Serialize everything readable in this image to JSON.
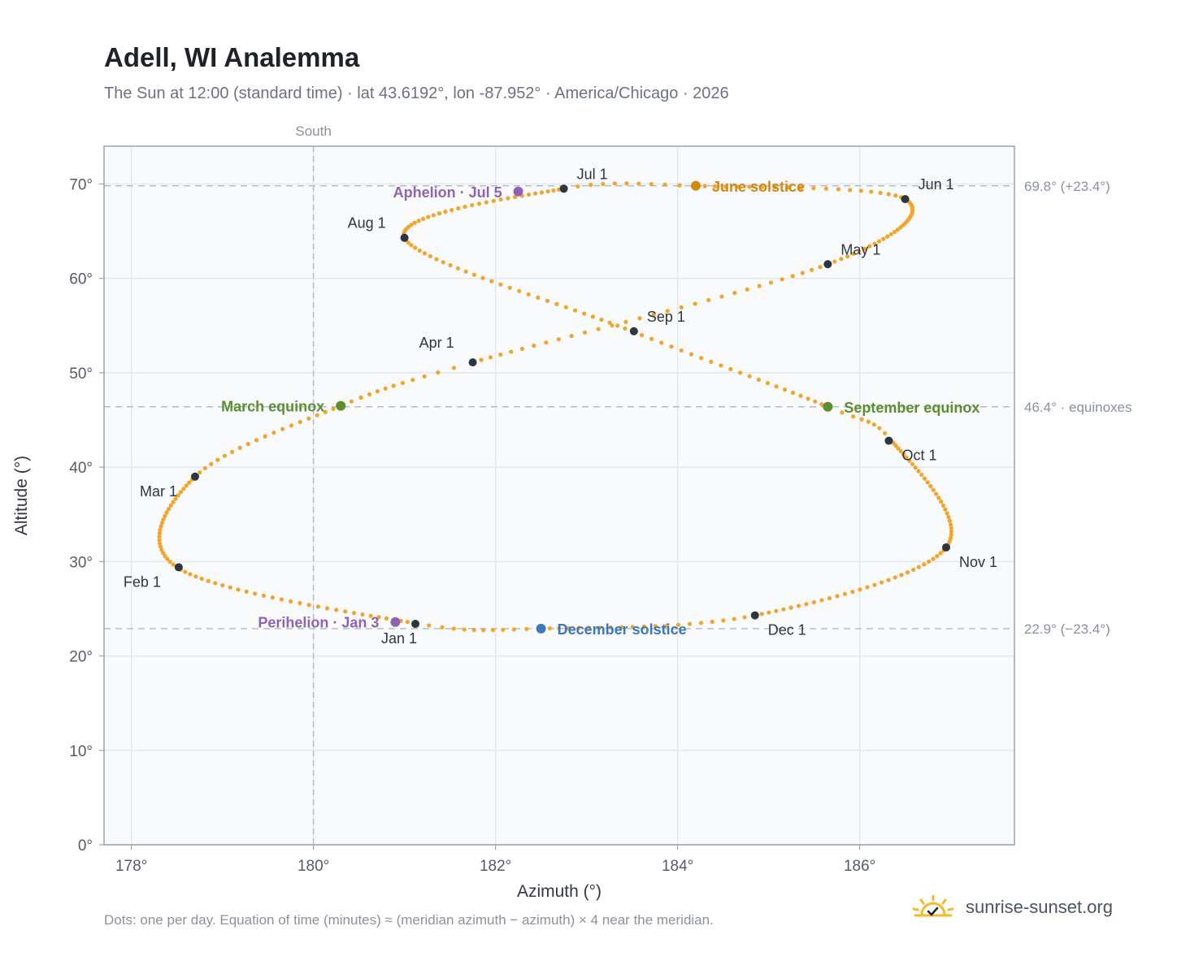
{
  "header": {
    "title": "Adell, WI Analemma",
    "subtitle": "The Sun at 12:00 (standard time) · lat 43.6192°, lon -87.952° · America/Chicago · 2026"
  },
  "footer": {
    "note": "Dots: one per day. Equation of time (minutes) ≈ (meridian azimuth − azimuth) × 4 near the meridian.",
    "brand": "sunrise-sunset.org",
    "brand_icon": "sun-logo-icon"
  },
  "colors": {
    "path": "#f2a52a",
    "month_dot": "#2d3640",
    "june_solstice": "#d18a0e",
    "december_solstice": "#3a78c0",
    "equinox": "#5a8f2e",
    "apsis": "#8e63b3",
    "reference": "#b7bec8",
    "grid": "#e3e8ee",
    "plot_bg": "#f8fafc",
    "frame": "#9aa3ae"
  },
  "chart_data": {
    "type": "scatter",
    "title": "Adell, WI Analemma",
    "xlabel": "Azimuth (°)",
    "ylabel": "Altitude (°)",
    "xlim": [
      177.7,
      187.7
    ],
    "ylim": [
      0,
      74
    ],
    "x_ticks": [
      178,
      180,
      182,
      184,
      186
    ],
    "x_tick_labels": [
      "178°",
      "180°",
      "182°",
      "184°",
      "186°"
    ],
    "y_ticks": [
      0,
      10,
      20,
      30,
      40,
      50,
      60,
      70
    ],
    "y_tick_labels": [
      "0°",
      "10°",
      "20°",
      "30°",
      "40°",
      "50°",
      "60°",
      "70°"
    ],
    "grid": true,
    "south_line": {
      "azimuth": 180,
      "label": "South"
    },
    "reference_lines": [
      {
        "altitude": 69.8,
        "label": "69.8° (+23.4°)"
      },
      {
        "altitude": 46.4,
        "label": "46.4° · equinoxes"
      },
      {
        "altitude": 22.9,
        "label": "22.9° (−23.4°)"
      }
    ],
    "path_keypoints": [
      {
        "day": 0,
        "az": 181.1,
        "alt": 23.5
      },
      {
        "day": 31,
        "az": 178.5,
        "alt": 29.4
      },
      {
        "day": 59,
        "az": 178.7,
        "alt": 39.0
      },
      {
        "day": 78,
        "az": 180.3,
        "alt": 46.5
      },
      {
        "day": 90,
        "az": 181.75,
        "alt": 51.1
      },
      {
        "day": 120,
        "az": 185.65,
        "alt": 61.5
      },
      {
        "day": 151,
        "az": 186.5,
        "alt": 68.4
      },
      {
        "day": 171,
        "az": 184.2,
        "alt": 69.8
      },
      {
        "day": 181,
        "az": 182.75,
        "alt": 69.5
      },
      {
        "day": 212,
        "az": 181.0,
        "alt": 64.3
      },
      {
        "day": 243,
        "az": 183.5,
        "alt": 54.4
      },
      {
        "day": 265,
        "az": 185.65,
        "alt": 46.4
      },
      {
        "day": 273,
        "az": 186.35,
        "alt": 42.8
      },
      {
        "day": 304,
        "az": 186.95,
        "alt": 31.5
      },
      {
        "day": 334,
        "az": 184.85,
        "alt": 24.3
      },
      {
        "day": 354,
        "az": 182.5,
        "alt": 22.9
      },
      {
        "day": 365,
        "az": 181.1,
        "alt": 23.5
      }
    ],
    "month_points": [
      {
        "label": "Jan 1",
        "az": 181.12,
        "alt": 23.4
      },
      {
        "label": "Feb 1",
        "az": 178.52,
        "alt": 29.4
      },
      {
        "label": "Mar 1",
        "az": 178.7,
        "alt": 39.0
      },
      {
        "label": "Apr 1",
        "az": 181.75,
        "alt": 51.1
      },
      {
        "label": "May 1",
        "az": 185.65,
        "alt": 61.5
      },
      {
        "label": "Jun 1",
        "az": 186.5,
        "alt": 68.4
      },
      {
        "label": "Jul 1",
        "az": 182.75,
        "alt": 69.5
      },
      {
        "label": "Aug 1",
        "az": 181.0,
        "alt": 64.3
      },
      {
        "label": "Sep 1",
        "az": 183.52,
        "alt": 54.4
      },
      {
        "label": "Oct 1",
        "az": 186.32,
        "alt": 42.8
      },
      {
        "label": "Nov 1",
        "az": 186.95,
        "alt": 31.5
      },
      {
        "label": "Dec 1",
        "az": 184.85,
        "alt": 24.3
      }
    ],
    "events": [
      {
        "label": "June solstice",
        "az": 184.2,
        "alt": 69.8,
        "color_key": "june_solstice",
        "side": "right"
      },
      {
        "label": "December solstice",
        "az": 182.5,
        "alt": 22.9,
        "color_key": "december_solstice",
        "side": "right"
      },
      {
        "label": "March equinox",
        "az": 180.3,
        "alt": 46.5,
        "color_key": "equinox",
        "side": "left"
      },
      {
        "label": "September equinox",
        "az": 185.65,
        "alt": 46.4,
        "color_key": "equinox",
        "side": "right"
      },
      {
        "label": "Aphelion · Jul 5",
        "az": 182.25,
        "alt": 69.2,
        "color_key": "apsis",
        "side": "left"
      },
      {
        "label": "Perihelion · Jan 3",
        "az": 180.9,
        "alt": 23.6,
        "color_key": "apsis",
        "side": "left"
      }
    ]
  }
}
